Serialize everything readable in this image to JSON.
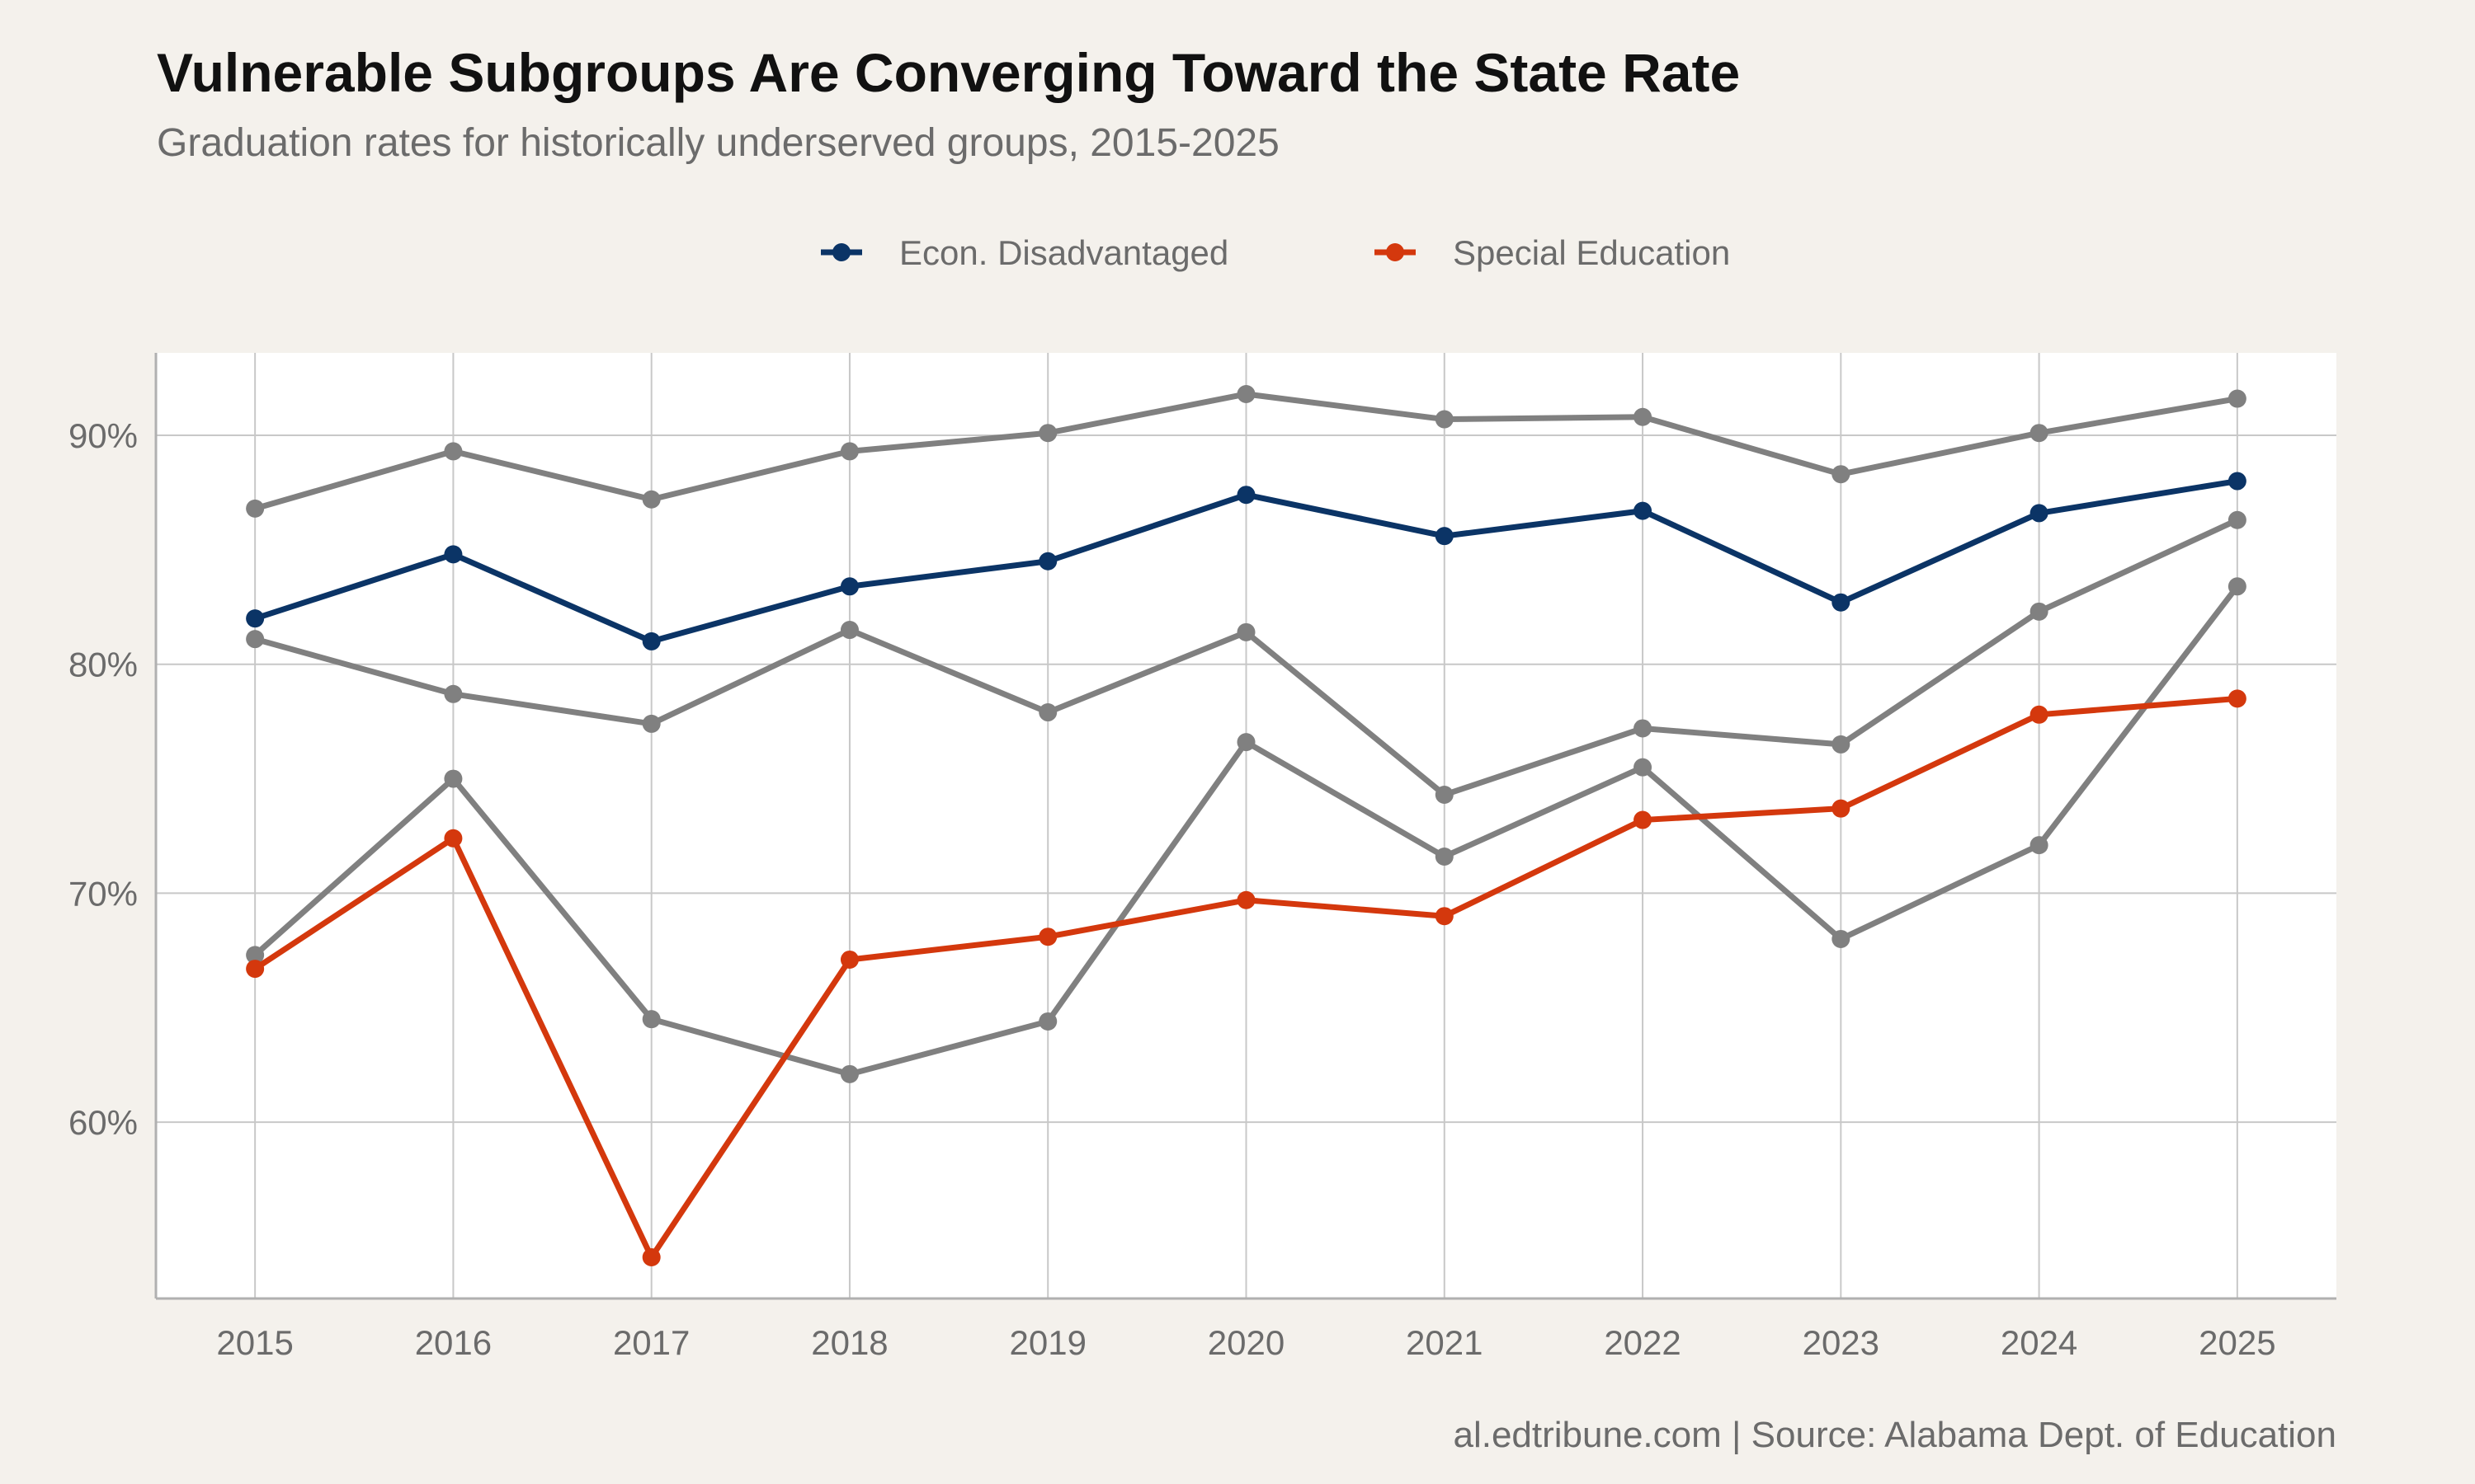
{
  "title": "Vulnerable Subgroups Are Converging Toward the State Rate",
  "subtitle": "Graduation rates for historically underserved groups, 2015-2025",
  "caption": "al.edtribune.com | Source: Alabama Dept. of Education",
  "chart_data": {
    "type": "line",
    "x": [
      2015,
      2016,
      2017,
      2018,
      2019,
      2020,
      2021,
      2022,
      2023,
      2024,
      2025
    ],
    "xlim": [
      2014.5,
      2025.5
    ],
    "ylim": [
      52.3,
      93.6
    ],
    "yticks": [
      60,
      70,
      80,
      90
    ],
    "ytick_labels": [
      "60%",
      "70%",
      "80%",
      "90%"
    ],
    "xtick_labels": [
      "2015",
      "2016",
      "2017",
      "2018",
      "2019",
      "2020",
      "2021",
      "2022",
      "2023",
      "2024",
      "2025"
    ],
    "grid": true,
    "legend_position": "top",
    "series": [
      {
        "values": [
          86.8,
          89.3,
          87.2,
          89.3,
          90.1,
          91.8,
          90.7,
          90.8,
          88.3,
          90.1,
          91.6
        ],
        "color": "#808080",
        "legend": false
      },
      {
        "values": [
          81.1,
          78.7,
          77.4,
          81.5,
          77.9,
          81.4,
          74.3,
          77.2,
          76.5,
          82.3,
          86.3
        ],
        "color": "#808080",
        "legend": false
      },
      {
        "values": [
          67.3,
          75.0,
          64.5,
          62.1,
          64.4,
          76.6,
          71.6,
          75.5,
          68.0,
          72.1,
          83.4
        ],
        "color": "#808080",
        "legend": false
      },
      {
        "name": "Econ. Disadvantaged",
        "values": [
          82.0,
          84.8,
          81.0,
          83.4,
          84.5,
          87.4,
          85.6,
          86.7,
          82.7,
          86.6,
          88.0
        ],
        "color": "#0b3466",
        "legend": true
      },
      {
        "name": "Special Education",
        "values": [
          66.7,
          72.4,
          54.1,
          67.1,
          68.1,
          69.7,
          69.0,
          73.2,
          73.7,
          77.8,
          78.5
        ],
        "color": "#d4380d",
        "legend": true
      }
    ]
  },
  "colors": {
    "background": "#f4f1ec",
    "panel": "#ffffff",
    "grid": "#c8c8c8"
  }
}
